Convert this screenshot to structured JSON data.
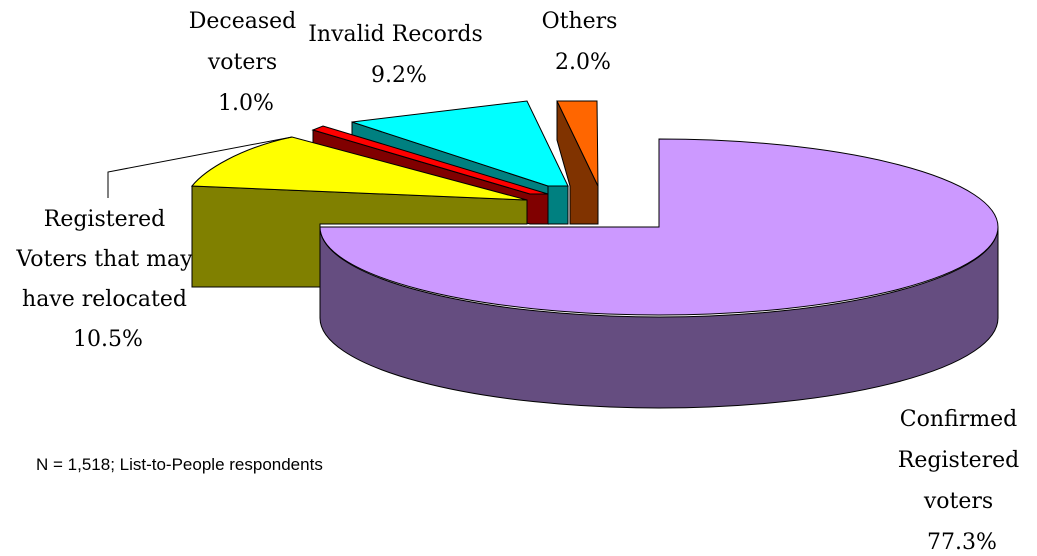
{
  "chart_data": {
    "type": "pie",
    "variant": "3d-exploded",
    "slices": [
      {
        "label_lines": [
          "Confirmed",
          "Registered",
          "voters"
        ],
        "value_text": "77.3%",
        "value": 77.3,
        "color": "#CC99FF",
        "side_color": "#654D80"
      },
      {
        "label_lines": [
          "Registered",
          "Voters that may",
          "have relocated"
        ],
        "value_text": "10.5%",
        "value": 10.5,
        "color": "#FFFF00",
        "side_color": "#808000"
      },
      {
        "label_lines": [
          "Deceased",
          "voters"
        ],
        "value_text": "1.0%",
        "value": 1.0,
        "color": "#FF0000",
        "side_color": "#800000"
      },
      {
        "label_lines": [
          "Invalid Records"
        ],
        "value_text": "9.2%",
        "value": 9.2,
        "color": "#00FFFF",
        "side_color": "#008080"
      },
      {
        "label_lines": [
          "Others"
        ],
        "value_text": "2.0%",
        "value": 2.0,
        "color": "#FF6600",
        "side_color": "#803300"
      }
    ],
    "note": "N = 1,518; List-to-People respondents"
  }
}
